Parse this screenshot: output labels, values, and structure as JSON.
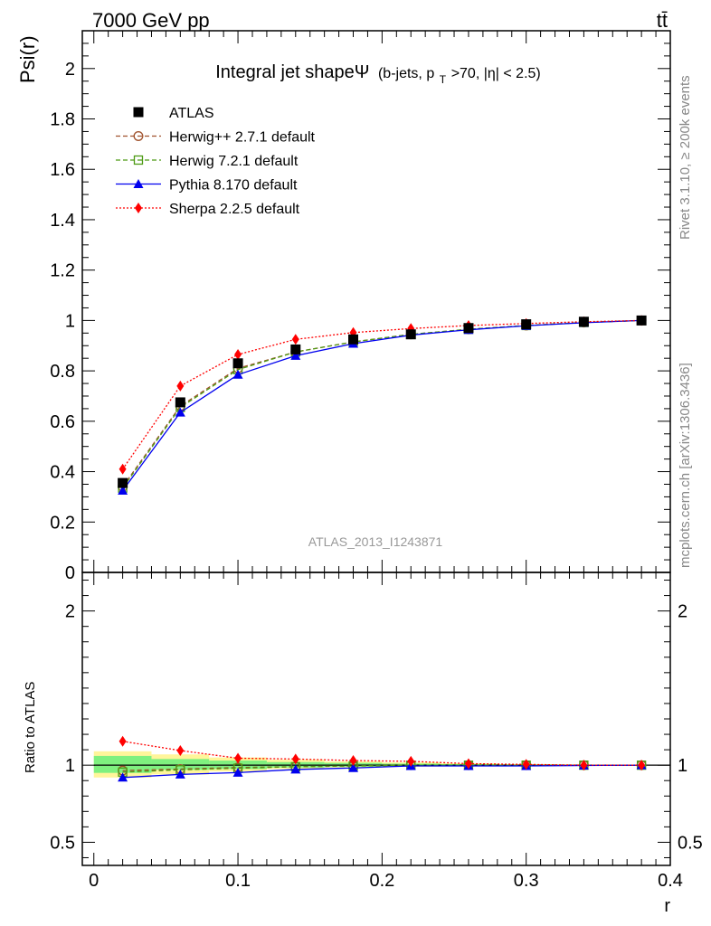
{
  "header": {
    "energy_label": "7000 GeV pp",
    "process_label": "tt̄",
    "rivet_label": "Rivet 3.1.10, ≥ 200k events",
    "mcplots_label": "mcplots.cern.ch [arXiv:1306.3436]"
  },
  "chart_data": [
    {
      "type": "line",
      "title": "Integral jet shapeΨ",
      "subtitle_prefix": "(b-jets, p",
      "subtitle_sub": "T",
      "subtitle_suffix": ">70, |η| < 2.5)",
      "ylabel": "Psi(r)",
      "analysis_label": "ATLAS_2013_I1243871",
      "xlim": [
        -0.008,
        0.4
      ],
      "ylim": [
        0,
        2.15
      ],
      "y_ticks": [
        "0",
        "0.2",
        "0.4",
        "0.6",
        "0.8",
        "1",
        "1.2",
        "1.4",
        "1.6",
        "1.8",
        "2"
      ],
      "x": [
        0.02,
        0.06,
        0.1,
        0.14,
        0.18,
        0.22,
        0.26,
        0.3,
        0.34,
        0.38
      ],
      "series": [
        {
          "name": "ATLAS",
          "color": "#000000",
          "marker": "square-filled",
          "line": "none",
          "values": [
            0.355,
            0.675,
            0.83,
            0.885,
            0.925,
            0.945,
            0.97,
            0.985,
            0.995,
            1.0
          ]
        },
        {
          "name": "Herwig++ 2.7.1 default",
          "color": "#a0522d",
          "marker": "circle-open",
          "line": "dashed",
          "values": [
            0.34,
            0.66,
            0.81,
            0.875,
            0.915,
            0.945,
            0.965,
            0.98,
            0.992,
            1.0
          ]
        },
        {
          "name": "Herwig 7.2.1 default",
          "color": "#4d9a14",
          "marker": "square-open",
          "line": "dashed",
          "values": [
            0.335,
            0.655,
            0.805,
            0.875,
            0.915,
            0.945,
            0.965,
            0.98,
            0.992,
            1.0
          ]
        },
        {
          "name": "Pythia 8.170 default",
          "color": "#0000ee",
          "marker": "triangle-filled",
          "line": "solid",
          "values": [
            0.325,
            0.635,
            0.785,
            0.86,
            0.908,
            0.942,
            0.963,
            0.979,
            0.991,
            1.0
          ]
        },
        {
          "name": "Sherpa 2.2.5 default",
          "color": "#ff0000",
          "marker": "diamond-filled",
          "line": "dotted",
          "values": [
            0.41,
            0.74,
            0.865,
            0.925,
            0.952,
            0.968,
            0.98,
            0.988,
            0.995,
            1.0
          ]
        }
      ]
    },
    {
      "type": "line",
      "ylabel": "Ratio to ATLAS",
      "xlabel": "r",
      "xlim": [
        -0.008,
        0.4
      ],
      "ylim": [
        0.35,
        2.25
      ],
      "y_ticks": [
        "0.5",
        "1",
        "2"
      ],
      "x_ticks": [
        "0",
        "0.1",
        "0.2",
        "0.3",
        "0.4"
      ],
      "x": [
        0.02,
        0.06,
        0.1,
        0.14,
        0.18,
        0.22,
        0.26,
        0.3,
        0.34,
        0.38
      ],
      "band_edges": [
        0.0,
        0.04,
        0.08,
        0.12,
        0.16,
        0.2,
        0.24,
        0.28,
        0.32,
        0.36,
        0.4
      ],
      "band_stat": [
        [
          0.95,
          1.06
        ],
        [
          0.97,
          1.04
        ],
        [
          0.975,
          1.03
        ],
        [
          0.985,
          1.02
        ],
        [
          0.99,
          1.015
        ],
        [
          0.993,
          1.01
        ],
        [
          0.995,
          1.007
        ],
        [
          0.997,
          1.004
        ],
        [
          0.998,
          1.002
        ],
        [
          0.999,
          1.001
        ]
      ],
      "band_total": [
        [
          0.92,
          1.09
        ],
        [
          0.94,
          1.07
        ],
        [
          0.96,
          1.05
        ],
        [
          0.975,
          1.035
        ],
        [
          0.985,
          1.025
        ],
        [
          0.99,
          1.018
        ],
        [
          0.993,
          1.012
        ],
        [
          0.996,
          1.006
        ],
        [
          0.998,
          1.003
        ],
        [
          0.999,
          1.001
        ]
      ],
      "band_stat_color": "#7ff07f",
      "band_total_color": "#fff59a",
      "series": [
        {
          "name": "Herwig++ 2.7.1 default",
          "color": "#a0522d",
          "marker": "circle-open",
          "line": "dashed",
          "values": [
            0.965,
            0.975,
            0.985,
            0.99,
            0.995,
            1.0,
            1.0,
            1.0,
            1.0,
            1.0
          ]
        },
        {
          "name": "Herwig 7.2.1 default",
          "color": "#4d9a14",
          "marker": "square-open",
          "line": "dashed",
          "values": [
            0.955,
            0.97,
            0.98,
            0.99,
            0.995,
            1.0,
            1.0,
            1.0,
            1.0,
            1.0
          ]
        },
        {
          "name": "Pythia 8.170 default",
          "color": "#0000ee",
          "marker": "triangle-filled",
          "line": "solid",
          "values": [
            0.92,
            0.94,
            0.952,
            0.972,
            0.982,
            0.995,
            0.995,
            0.995,
            0.998,
            1.0
          ]
        },
        {
          "name": "Sherpa 2.2.5 default",
          "color": "#ff0000",
          "marker": "diamond-filled",
          "line": "dotted",
          "values": [
            1.155,
            1.095,
            1.045,
            1.04,
            1.03,
            1.025,
            1.01,
            1.005,
            1.0,
            1.0
          ]
        }
      ]
    }
  ]
}
